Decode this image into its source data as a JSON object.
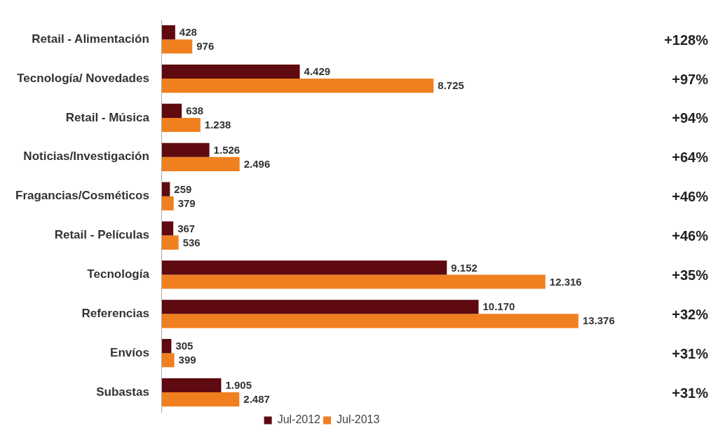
{
  "chart_data": {
    "type": "bar",
    "orientation": "horizontal",
    "categories": [
      "Retail - Alimentación",
      "Tecnología/ Novedades",
      "Retail - Música",
      "Noticias/Investigación",
      "Fragancias/Cosméticos",
      "Retail - Películas",
      "Tecnología",
      "Referencias",
      "Envíos",
      "Subastas"
    ],
    "series": [
      {
        "name": "Jul-2012",
        "color": "#5e0a10",
        "values": [
          428,
          4429,
          638,
          1526,
          259,
          367,
          9152,
          10170,
          305,
          1905
        ],
        "value_labels": [
          "428",
          "4.429",
          "638",
          "1.526",
          "259",
          "367",
          "9.152",
          "10.170",
          "305",
          "1.905"
        ]
      },
      {
        "name": "Jul-2013",
        "color": "#f07f1f",
        "values": [
          976,
          8725,
          1238,
          2496,
          379,
          536,
          12316,
          13376,
          399,
          2487
        ],
        "value_labels": [
          "976",
          "8.725",
          "1.238",
          "2.496",
          "379",
          "536",
          "12.316",
          "13.376",
          "399",
          "2.487"
        ]
      }
    ],
    "annotations": [
      "+128%",
      "+97%",
      "+94%",
      "+64%",
      "+46%",
      "+46%",
      "+35%",
      "+32%",
      "+31%",
      "+31%"
    ],
    "legend": "bottom",
    "tick_labels": "y"
  }
}
